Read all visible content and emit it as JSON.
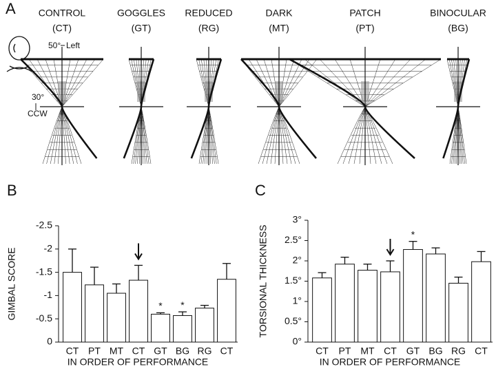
{
  "panel_a": {
    "label": "A",
    "conditions": [
      {
        "name": "CONTROL",
        "abbr": "(CT)"
      },
      {
        "name": "GOGGLES",
        "abbr": "(GT)"
      },
      {
        "name": "REDUCED",
        "abbr": "(RG)"
      },
      {
        "name": "DARK",
        "abbr": "(MT)"
      },
      {
        "name": "PATCH",
        "abbr": "(PT)"
      },
      {
        "name": "BINOCULAR",
        "abbr": "(BG)"
      }
    ],
    "scale_labels": {
      "vertical": "50°",
      "vertical_dir": "Left",
      "horizontal": "30°",
      "horizontal_dir": "CCW"
    }
  },
  "chart_data": [
    {
      "type": "bar",
      "panel": "B",
      "ylabel": "GIMBAL SCORE",
      "xlabel": "IN ORDER OF PERFORMANCE",
      "categories": [
        "CT",
        "PT",
        "MT",
        "CT",
        "GT",
        "BG",
        "RG",
        "CT"
      ],
      "values": [
        -1.5,
        -1.23,
        -1.05,
        -1.33,
        -0.6,
        -0.57,
        -0.73,
        -1.35
      ],
      "errors": [
        0.5,
        0.38,
        0.2,
        0.32,
        0.03,
        0.08,
        0.06,
        0.34
      ],
      "significance": [
        null,
        null,
        null,
        null,
        "*",
        "*",
        null,
        null
      ],
      "color": "#ffffff",
      "ylim": [
        0,
        -2.5
      ],
      "yticks": [
        0,
        -0.5,
        -1,
        -1.5,
        -2,
        -2.5
      ]
    },
    {
      "type": "bar",
      "panel": "C",
      "ylabel": "TORSIONAL THICKNESS",
      "xlabel": "IN ORDER OF PERFORMANCE",
      "categories": [
        "CT",
        "PT",
        "MT",
        "CT",
        "GT",
        "BG",
        "RG",
        "CT"
      ],
      "values": [
        1.58,
        1.92,
        1.77,
        1.73,
        2.28,
        2.17,
        1.45,
        1.98
      ],
      "errors": [
        0.13,
        0.17,
        0.15,
        0.27,
        0.2,
        0.15,
        0.15,
        0.25
      ],
      "significance": [
        null,
        null,
        null,
        null,
        "*",
        null,
        null,
        null
      ],
      "color": "#ffffff",
      "ylim": [
        0,
        3
      ],
      "yticks": [
        {
          "value": 0,
          "label": "0°"
        },
        {
          "value": 0.5,
          "label": "0.5°"
        },
        {
          "value": 1,
          "label": "1°"
        },
        {
          "value": 1.5,
          "label": "1.5°"
        },
        {
          "value": 2,
          "label": "2°"
        },
        {
          "value": 2.5,
          "label": "2.5°"
        },
        {
          "value": 3,
          "label": "3°"
        }
      ]
    }
  ]
}
